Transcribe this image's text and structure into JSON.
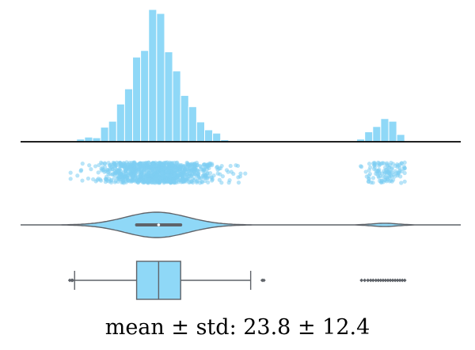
{
  "caption": "mean ± std:  23.8 ± 12.4",
  "colors": {
    "fill": "#8fd8f7",
    "bar_edge": "#ffffff",
    "strip_dot": "#7dcdf3",
    "violin_edge": "#5f6369",
    "box_edge": "#5f6369",
    "baseline": "#000000"
  },
  "chart_data": [
    {
      "type": "histogram",
      "xlim": [
        -12,
        98
      ],
      "bins": [
        {
          "x0": 0,
          "x1": 2,
          "count": 1
        },
        {
          "x0": 2,
          "x1": 4,
          "count": 4
        },
        {
          "x0": 4,
          "x1": 6,
          "count": 7
        },
        {
          "x0": 6,
          "x1": 8,
          "count": 6
        },
        {
          "x0": 8,
          "x1": 10,
          "count": 22
        },
        {
          "x0": 10,
          "x1": 12,
          "count": 31
        },
        {
          "x0": 12,
          "x1": 14,
          "count": 57
        },
        {
          "x0": 14,
          "x1": 16,
          "count": 80
        },
        {
          "x0": 16,
          "x1": 18,
          "count": 128
        },
        {
          "x0": 18,
          "x1": 20,
          "count": 138
        },
        {
          "x0": 20,
          "x1": 22,
          "count": 200
        },
        {
          "x0": 22,
          "x1": 24,
          "count": 194
        },
        {
          "x0": 24,
          "x1": 26,
          "count": 136
        },
        {
          "x0": 26,
          "x1": 28,
          "count": 107
        },
        {
          "x0": 28,
          "x1": 30,
          "count": 70
        },
        {
          "x0": 30,
          "x1": 32,
          "count": 53
        },
        {
          "x0": 32,
          "x1": 34,
          "count": 30
        },
        {
          "x0": 34,
          "x1": 36,
          "count": 18
        },
        {
          "x0": 36,
          "x1": 38,
          "count": 13
        },
        {
          "x0": 38,
          "x1": 40,
          "count": 3
        },
        {
          "x0": 40,
          "x1": 42,
          "count": 0
        },
        {
          "x0": 42,
          "x1": 44,
          "count": 0
        },
        {
          "x0": 44,
          "x1": 46,
          "count": 1
        },
        {
          "x0": 72,
          "x1": 74,
          "count": 4
        },
        {
          "x0": 74,
          "x1": 76,
          "count": 15
        },
        {
          "x0": 76,
          "x1": 78,
          "count": 23
        },
        {
          "x0": 78,
          "x1": 80,
          "count": 35
        },
        {
          "x0": 80,
          "x1": 82,
          "count": 31
        },
        {
          "x0": 82,
          "x1": 84,
          "count": 11
        }
      ]
    },
    {
      "type": "scatter",
      "variant": "strip",
      "seed": 12,
      "clusters": [
        {
          "center": 22,
          "spread": 7.2,
          "count": 1000,
          "min": 0.5,
          "max": 47
        },
        {
          "center": 78.8,
          "spread": 2.6,
          "count": 120,
          "min": 73,
          "max": 84
        }
      ]
    },
    {
      "type": "area",
      "variant": "violin",
      "range": [
        -12,
        98
      ],
      "components": [
        {
          "center": 22,
          "sigma": 7.8,
          "weight": 1.0
        },
        {
          "center": 79,
          "sigma": 3.2,
          "weight": 0.13
        }
      ],
      "box": {
        "q1": 17.0,
        "q3": 28.0
      },
      "median": 22.5
    },
    {
      "type": "box",
      "whisker_low": 1.5,
      "q1": 17.0,
      "median": 22.5,
      "q3": 28.0,
      "whisker_high": 45.5,
      "fliers": [
        0.3,
        0.8,
        1.0,
        48.4,
        48.8,
        73.2,
        74,
        74.8,
        75.5,
        76.1,
        76.8,
        77.4,
        78,
        78.6,
        79.2,
        79.8,
        80.4,
        81,
        81.6,
        82.2,
        82.8,
        83.4,
        84
      ]
    }
  ]
}
